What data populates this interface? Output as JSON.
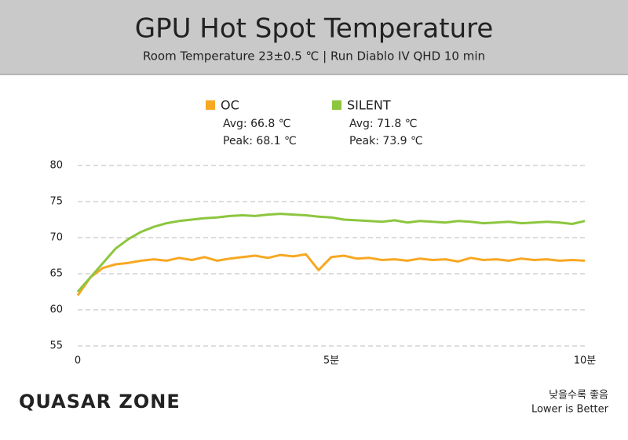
{
  "chart_data": {
    "type": "line",
    "title": "GPU Hot Spot Temperature",
    "subtitle": "Room Temperature 23±0.5 ℃  |  Run Diablo IV QHD 10 min",
    "logo": "QUASAR ZONE",
    "note": [
      "낮을수록 좋음",
      "Lower is Better"
    ],
    "x": [
      0,
      0.25,
      0.5,
      0.75,
      1,
      1.25,
      1.5,
      1.75,
      2,
      2.25,
      2.5,
      2.75,
      3,
      3.25,
      3.5,
      3.75,
      4,
      4.25,
      4.5,
      4.75,
      5,
      5.25,
      5.5,
      5.75,
      6,
      6.25,
      6.5,
      6.75,
      7,
      7.25,
      7.5,
      7.75,
      8,
      8.25,
      8.5,
      8.75,
      9,
      9.25,
      9.5,
      9.75,
      10
    ],
    "series": [
      {
        "name": "OC",
        "color": "#f7a823",
        "stats": [
          "Avg: 66.8 ℃",
          "Peak: 68.1 ℃"
        ],
        "values": [
          62,
          64.5,
          65.8,
          66.3,
          66.5,
          66.8,
          67,
          66.8,
          67.2,
          66.9,
          67.3,
          66.8,
          67.1,
          67.3,
          67.5,
          67.2,
          67.6,
          67.4,
          67.7,
          65.5,
          67.3,
          67.5,
          67.1,
          67.2,
          66.9,
          67,
          66.8,
          67.1,
          66.9,
          67,
          66.7,
          67.2,
          66.9,
          67,
          66.8,
          67.1,
          66.9,
          67,
          66.8,
          66.9,
          66.8
        ]
      },
      {
        "name": "SILENT",
        "color": "#8cc63f",
        "stats": [
          "Avg: 71.8 ℃",
          "Peak: 73.9 ℃"
        ],
        "values": [
          62.5,
          64.5,
          66.5,
          68.5,
          69.8,
          70.8,
          71.5,
          72,
          72.3,
          72.5,
          72.7,
          72.8,
          73,
          73.1,
          73,
          73.2,
          73.3,
          73.2,
          73.1,
          72.9,
          72.8,
          72.5,
          72.4,
          72.3,
          72.2,
          72.4,
          72.1,
          72.3,
          72.2,
          72.1,
          72.3,
          72.2,
          72,
          72.1,
          72.2,
          72,
          72.1,
          72.2,
          72.1,
          71.9,
          72.3
        ]
      }
    ],
    "xlim": [
      0,
      10
    ],
    "xticks": [
      0,
      {
        "value": 5,
        "label": "5분"
      },
      {
        "value": 10,
        "label": "10분"
      }
    ],
    "ylim": [
      55,
      80
    ],
    "yticks": [
      55,
      60,
      65,
      70,
      75,
      80
    ],
    "grid": true
  }
}
